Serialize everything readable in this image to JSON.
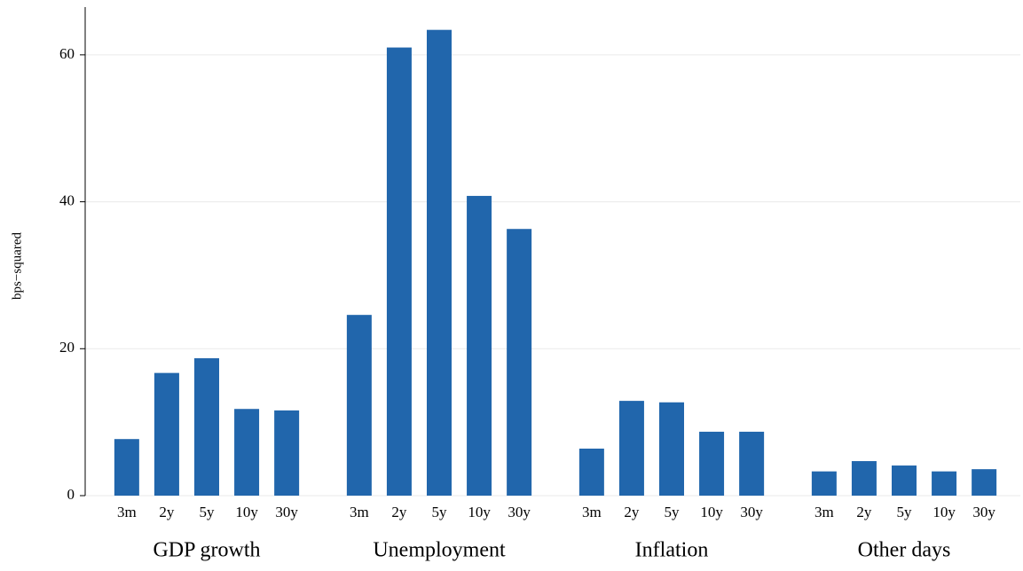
{
  "chart_data": {
    "type": "bar",
    "ylabel": "bps−squared",
    "color": "#2166ac",
    "grid": true,
    "ylim": [
      0,
      66.5
    ],
    "yticks": [
      0,
      20,
      40,
      60
    ],
    "groups": [
      {
        "name": "GDP growth",
        "categories": [
          "3m",
          "2y",
          "5y",
          "10y",
          "30y"
        ],
        "values": [
          7.7,
          16.7,
          18.7,
          11.8,
          11.6
        ]
      },
      {
        "name": "Unemployment",
        "categories": [
          "3m",
          "2y",
          "5y",
          "10y",
          "30y"
        ],
        "values": [
          24.6,
          61.0,
          63.4,
          40.8,
          36.3
        ]
      },
      {
        "name": "Inflation",
        "categories": [
          "3m",
          "2y",
          "5y",
          "10y",
          "30y"
        ],
        "values": [
          6.4,
          12.9,
          12.7,
          8.7,
          8.7
        ]
      },
      {
        "name": "Other days",
        "categories": [
          "3m",
          "2y",
          "5y",
          "10y",
          "30y"
        ],
        "values": [
          3.3,
          4.7,
          4.1,
          3.3,
          3.6
        ]
      }
    ]
  }
}
